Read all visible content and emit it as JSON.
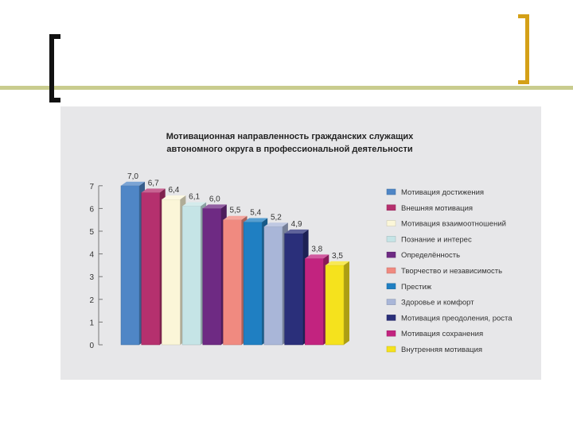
{
  "colors": {
    "bracket_left": "#111111",
    "bracket_right": "#d4a017",
    "rule": "#c9cc8e",
    "panel": "#e7e7e9"
  },
  "chart_data": {
    "type": "bar",
    "title_lines": [
      "Мотивационная направленность гражданских служащих",
      "автономного округа в профессиональной деятельности"
    ],
    "xlabel": "",
    "ylabel": "",
    "ylim": [
      0,
      7
    ],
    "yticks": [
      "0",
      "1",
      "2",
      "3",
      "4",
      "5",
      "6",
      "7"
    ],
    "legend_position": "right",
    "grid": false,
    "categories": [
      "Мотивация достижения",
      "Внешняя мотивация",
      "Мотивация взаимоотношений",
      "Познание и интерес",
      "Определённость",
      "Творчество и независимость",
      "Престиж",
      "Здоровье и комфорт",
      "Мотивация преодоления, роста",
      "Мотивация сохранения",
      "Внутренняя мотивация"
    ],
    "values": [
      7.0,
      6.7,
      6.4,
      6.1,
      6.0,
      5.5,
      5.4,
      5.2,
      4.9,
      3.8,
      3.5
    ],
    "value_labels": [
      "7,0",
      "6,7",
      "6,4",
      "6,1",
      "6,0",
      "5,5",
      "5,4",
      "5,2",
      "4,9",
      "3,8",
      "3,5"
    ],
    "colors": [
      "#4f86c6",
      "#b5306e",
      "#fbf6d8",
      "#c5e4e6",
      "#6e2a83",
      "#f08a80",
      "#1f7fc2",
      "#a9b6d8",
      "#2a2f7a",
      "#c2237f",
      "#f5e21d"
    ]
  }
}
